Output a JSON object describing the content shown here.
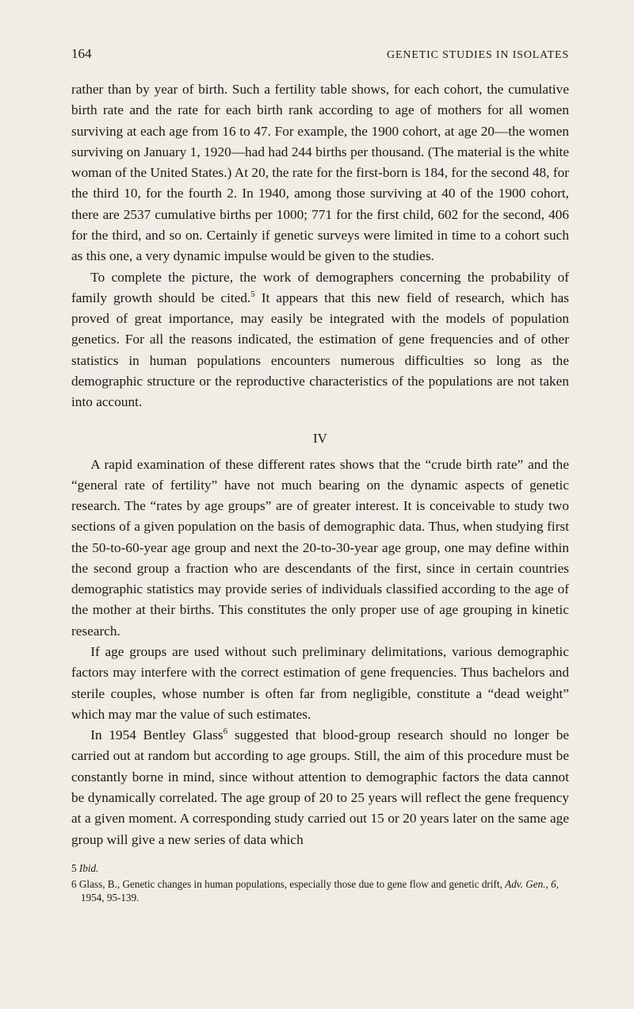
{
  "page": {
    "number": "164",
    "running_head": "GENETIC STUDIES IN ISOLATES",
    "background_color": "#f0ede4",
    "text_color": "#1a1a1a",
    "body_fontsize_pt": 17.3,
    "line_height": 1.52,
    "footnote_fontsize_pt": 13.2
  },
  "body": {
    "p1a": "rather than by year of birth. Such a fertility table shows, for each cohort, the cumulative birth rate and the rate for each birth rank according to age of mothers for all women surviving at each age from 16 to 47. For example, the 1900 cohort, at age 20—the women surviving on January 1, 1920—had had 244 births per thousand. (The material is the white woman of the United States.) At 20, the rate for the first-born is 184, for the second 48, for the third 10, for the fourth 2. In 1940, among those surviving at 40 of the 1900 cohort, there are 2537 cumulative births per 1000; 771 for the first child, 602 for the second, 406 for the third, and so on. Certainly if genetic surveys were limited in time to a cohort such as this one, a very dynamic impulse would be given to the studies.",
    "p1b_pre": "To complete the picture, the work of demographers concerning the proba­bility of family growth should be cited.",
    "p1b_post": " It appears that this new field of research, which has proved of great importance, may easily be integrated with the models of population genetics. For all the reasons indicated, the estimation of gene fre­quencies and of other statistics in human populations encounters numerous diffi­culties so long as the demographic structure or the reproductive characteristics of the populations are not taken into account.",
    "section_number": "IV",
    "p2a": "A rapid examination of these different rates shows that the “crude birth rate” and the “general rate of fertility” have not much bearing on the dynamic aspects of genetic research. The “rates by age groups” are of greater interest. It is con­ceivable to study two sections of a given population on the basis of demographic data. Thus, when studying first the 50-to-60-year age group and next the 20-to-30-year age group, one may define within the second group a fraction who are descendants of the first, since in certain countries demographic statistics may provide series of individuals classified according to the age of the mother at their births. This constitutes the only proper use of age grouping in kinetic research.",
    "p2b": "If age groups are used without such preliminary delimitations, various demo­graphic factors may interfere with the correct estimation of gene frequencies. Thus bachelors and sterile couples, whose number is often far from negligible, constitute a “dead weight” which may mar the value of such estimates.",
    "p2c_pre": "In 1954 Bentley Glass",
    "p2c_post": " suggested that blood-group research should no longer be carried out at random but according to age groups. Still, the aim of this pro­cedure must be constantly borne in mind, since without attention to demographic factors the data cannot be dynamically correlated. The age group of 20 to 25 years will reflect the gene frequency at a given moment. A corresponding study carried out 15 or 20 years later on the same age group will give a new series of data which"
  },
  "refs": {
    "fn5_sup": "5",
    "fn6_sup": "6"
  },
  "footnotes": {
    "fn5_num": "5",
    "fn5_text": "Ibid.",
    "fn6_num": "6",
    "fn6_pre": "Glass, B., Genetic changes in human populations, especially those due to gene flow and genetic drift, ",
    "fn6_ital": "Adv. Gen., 6,",
    "fn6_post": " 1954, 95-139."
  }
}
